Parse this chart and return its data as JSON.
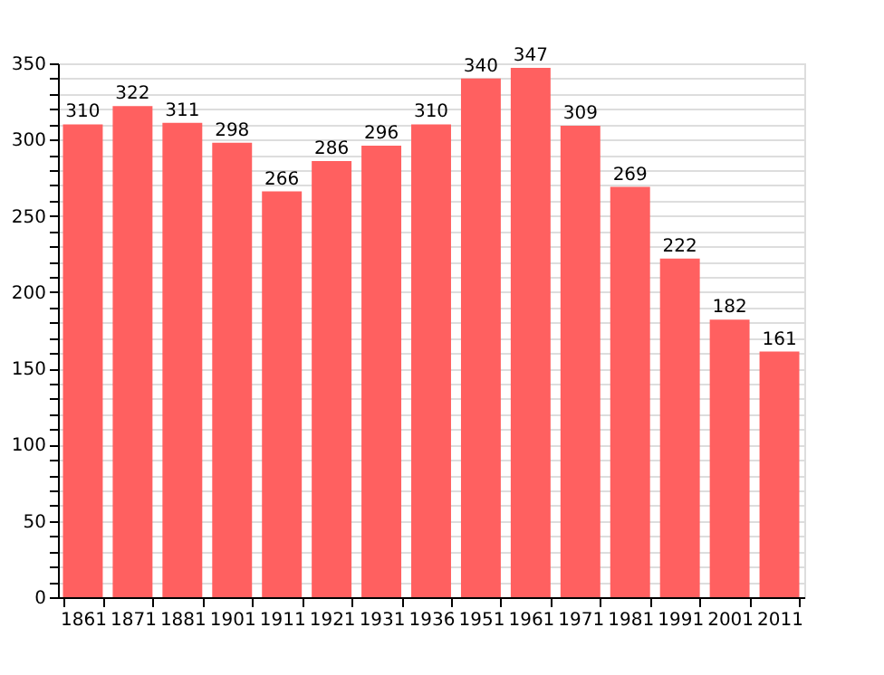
{
  "chart_data": {
    "type": "bar",
    "categories": [
      "1861",
      "1871",
      "1881",
      "1901",
      "1911",
      "1921",
      "1931",
      "1936",
      "1951",
      "1961",
      "1971",
      "1981",
      "1991",
      "2001",
      "2011"
    ],
    "values": [
      310,
      322,
      311,
      298,
      266,
      286,
      296,
      310,
      340,
      347,
      309,
      269,
      222,
      182,
      161
    ],
    "color": "#ff6060",
    "ylim": [
      0,
      350
    ],
    "yticks": [
      0,
      {
        "value": 10,
        "label": null
      },
      {
        "value": 20,
        "label": null
      },
      {
        "value": 30,
        "label": null
      },
      {
        "value": 40,
        "label": null
      },
      50,
      {
        "value": 60,
        "label": null
      },
      {
        "value": 70,
        "label": null
      },
      {
        "value": 80,
        "label": null
      },
      {
        "value": 90,
        "label": null
      },
      100,
      {
        "value": 110,
        "label": null
      },
      {
        "value": 120,
        "label": null
      },
      {
        "value": 130,
        "label": null
      },
      {
        "value": 140,
        "label": null
      },
      150,
      {
        "value": 160,
        "label": null
      },
      {
        "value": 170,
        "label": null
      },
      {
        "value": 180,
        "label": null
      },
      {
        "value": 190,
        "label": null
      },
      200,
      {
        "value": 210,
        "label": null
      },
      {
        "value": 220,
        "label": null
      },
      {
        "value": 230,
        "label": null
      },
      {
        "value": 240,
        "label": null
      },
      250,
      {
        "value": 260,
        "label": null
      },
      {
        "value": 270,
        "label": null
      },
      {
        "value": 280,
        "label": null
      },
      {
        "value": 290,
        "label": null
      },
      300,
      {
        "value": 310,
        "label": null
      },
      {
        "value": 320,
        "label": null
      },
      {
        "value": 330,
        "label": null
      },
      {
        "value": 340,
        "label": null
      },
      350
    ],
    "grid": "y",
    "data_labels": true
  }
}
